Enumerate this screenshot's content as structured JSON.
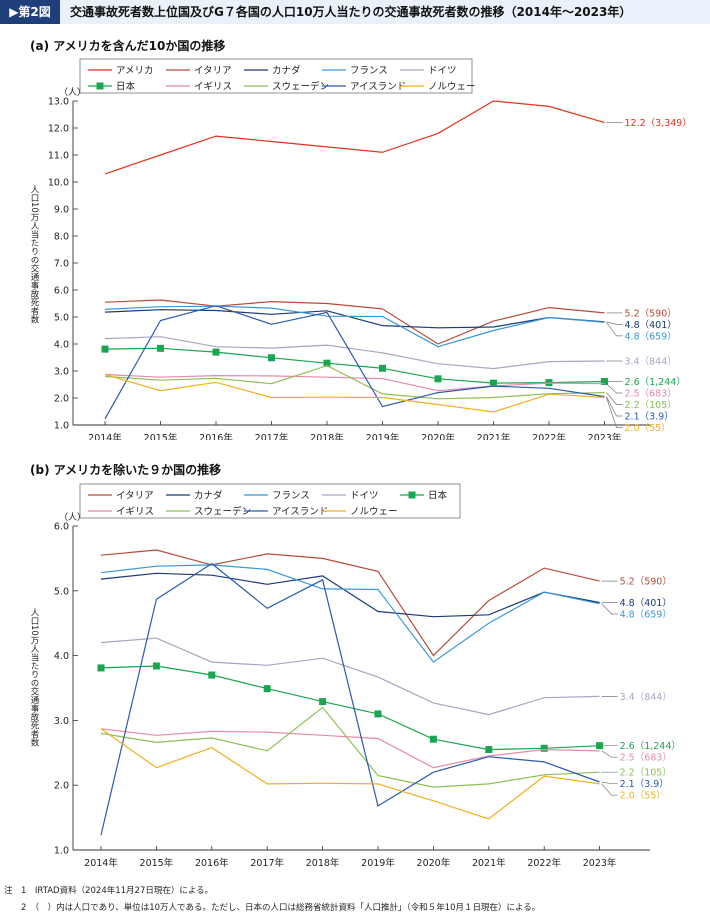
{
  "figure": {
    "badge": "▶第2図",
    "title": "交通事故死者数上位国及びG７各国の人口10万人当たりの交通事故死者数の推移（2014年～2023年）"
  },
  "notes": [
    "注　1　IRTAD資料（2024年11月27日現在）による。",
    "　　2　（　）内は人口であり、単位は10万人である。ただし、日本の人口は総務省統計資料「人口推計」（令和５年10月１日現在）による。"
  ],
  "chart_data": [
    {
      "type": "line",
      "title": "(a)  アメリカを含んだ10か国の推移",
      "ylabel": "人口10万人当たりの交通事故死者数",
      "yunit": "（人）",
      "ylim": [
        1.0,
        13.0
      ],
      "yticks": [
        "1.0",
        "2.0",
        "3.0",
        "4.0",
        "5.0",
        "6.0",
        "7.0",
        "8.0",
        "9.0",
        "10.0",
        "11.0",
        "12.0",
        "13.0"
      ],
      "x": [
        "2014年",
        "2015年",
        "2016年",
        "2017年",
        "2018年",
        "2019年",
        "2020年",
        "2021年",
        "2022年",
        "2023年"
      ],
      "legend_rows": [
        [
          "アメリカ",
          "イタリア",
          "カナダ",
          "フランス",
          "ドイツ"
        ],
        [
          "日本",
          "イギリス",
          "スウェーデン",
          "アイスランド",
          "ノルウェー"
        ]
      ],
      "series": [
        {
          "name": "アメリカ",
          "color": "#e0341e",
          "values": [
            10.3,
            11.0,
            11.7,
            11.5,
            11.3,
            11.1,
            11.8,
            13.0,
            12.8,
            12.2
          ],
          "end_label": "12.2（3,349）"
        },
        {
          "name": "イタリア",
          "color": "#b84a3a",
          "values": [
            5.55,
            5.63,
            5.4,
            5.57,
            5.5,
            5.3,
            4.0,
            4.85,
            5.35,
            5.15
          ],
          "end_label": "5.2（590）"
        },
        {
          "name": "カナダ",
          "color": "#1a3a78",
          "values": [
            5.18,
            5.27,
            5.24,
            5.1,
            5.23,
            4.68,
            4.6,
            4.63,
            4.98,
            4.82
          ],
          "end_label": "4.8（401）"
        },
        {
          "name": "フランス",
          "color": "#3a98d8",
          "values": [
            5.28,
            5.38,
            5.4,
            5.33,
            5.03,
            5.02,
            3.9,
            4.5,
            4.98,
            4.8
          ],
          "end_label": "4.8（659）"
        },
        {
          "name": "ドイツ",
          "color": "#a8a6c0",
          "values": [
            4.2,
            4.27,
            3.9,
            3.85,
            3.96,
            3.67,
            3.27,
            3.09,
            3.35,
            3.37
          ],
          "end_label": "3.4（844）"
        },
        {
          "name": "日本",
          "color": "#18a650",
          "marker": "square",
          "values": [
            3.81,
            3.84,
            3.7,
            3.49,
            3.29,
            3.1,
            2.71,
            2.55,
            2.57,
            2.61
          ],
          "end_label": "2.6（1,244）"
        },
        {
          "name": "イギリス",
          "color": "#e88aa8",
          "values": [
            2.87,
            2.77,
            2.83,
            2.82,
            2.77,
            2.72,
            2.27,
            2.45,
            2.55,
            2.53
          ],
          "end_label": "2.5（683）"
        },
        {
          "name": "スウェーデン",
          "color": "#8cc055",
          "values": [
            2.8,
            2.66,
            2.73,
            2.53,
            3.2,
            2.15,
            1.97,
            2.02,
            2.16,
            2.2
          ],
          "end_label": "2.2（105）"
        },
        {
          "name": "アイスランド",
          "color": "#2a5ab0",
          "values": [
            1.23,
            4.87,
            5.42,
            4.73,
            5.17,
            1.68,
            2.2,
            2.44,
            2.36,
            2.05
          ],
          "end_label": "2.1（3.9）"
        },
        {
          "name": "ノルウェー",
          "color": "#f0b020",
          "values": [
            2.87,
            2.27,
            2.58,
            2.02,
            2.03,
            2.02,
            1.76,
            1.48,
            2.14,
            2.02
          ],
          "end_label": "2.0（55）"
        }
      ]
    },
    {
      "type": "line",
      "title": "(b)  アメリカを除いた９か国の推移",
      "ylabel": "人口10万人当たりの交通事故死者数",
      "yunit": "（人）",
      "ylim": [
        1.0,
        6.0
      ],
      "yticks": [
        "1.0",
        "2.0",
        "3.0",
        "4.0",
        "5.0",
        "6.0"
      ],
      "x": [
        "2014年",
        "2015年",
        "2016年",
        "2017年",
        "2018年",
        "2019年",
        "2020年",
        "2021年",
        "2022年",
        "2023年"
      ],
      "legend_rows": [
        [
          "イタリア",
          "カナダ",
          "フランス",
          "ドイツ",
          "日本"
        ],
        [
          "イギリス",
          "スウェーデン",
          "アイスランド",
          "ノルウェー"
        ]
      ],
      "series": [
        {
          "name": "イタリア",
          "color": "#b84a3a",
          "values": [
            5.55,
            5.63,
            5.4,
            5.57,
            5.5,
            5.3,
            4.0,
            4.85,
            5.35,
            5.15
          ],
          "end_label": "5.2（590）"
        },
        {
          "name": "カナダ",
          "color": "#1a3a78",
          "values": [
            5.18,
            5.27,
            5.24,
            5.1,
            5.23,
            4.68,
            4.6,
            4.63,
            4.98,
            4.82
          ],
          "end_label": "4.8（401）"
        },
        {
          "name": "フランス",
          "color": "#3a98d8",
          "values": [
            5.28,
            5.38,
            5.4,
            5.33,
            5.03,
            5.02,
            3.9,
            4.5,
            4.98,
            4.8
          ],
          "end_label": "4.8（659）"
        },
        {
          "name": "ドイツ",
          "color": "#a8a6c0",
          "values": [
            4.2,
            4.27,
            3.9,
            3.85,
            3.96,
            3.67,
            3.27,
            3.09,
            3.35,
            3.37
          ],
          "end_label": "3.4（844）"
        },
        {
          "name": "日本",
          "color": "#18a650",
          "marker": "square",
          "values": [
            3.81,
            3.84,
            3.7,
            3.49,
            3.29,
            3.1,
            2.71,
            2.55,
            2.57,
            2.61
          ],
          "end_label": "2.6（1,244）"
        },
        {
          "name": "イギリス",
          "color": "#e88aa8",
          "values": [
            2.87,
            2.77,
            2.83,
            2.82,
            2.77,
            2.72,
            2.27,
            2.45,
            2.55,
            2.53
          ],
          "end_label": "2.5（683）"
        },
        {
          "name": "スウェーデン",
          "color": "#8cc055",
          "values": [
            2.8,
            2.66,
            2.73,
            2.53,
            3.2,
            2.15,
            1.97,
            2.02,
            2.16,
            2.2
          ],
          "end_label": "2.2（105）"
        },
        {
          "name": "アイスランド",
          "color": "#2a5ab0",
          "values": [
            1.23,
            4.87,
            5.42,
            4.73,
            5.17,
            1.68,
            2.2,
            2.44,
            2.36,
            2.05
          ],
          "end_label": "2.1（3.9）"
        },
        {
          "name": "ノルウェー",
          "color": "#f0b020",
          "values": [
            2.87,
            2.27,
            2.58,
            2.02,
            2.03,
            2.02,
            1.76,
            1.48,
            2.14,
            2.02
          ],
          "end_label": "2.0（55）"
        }
      ]
    }
  ]
}
